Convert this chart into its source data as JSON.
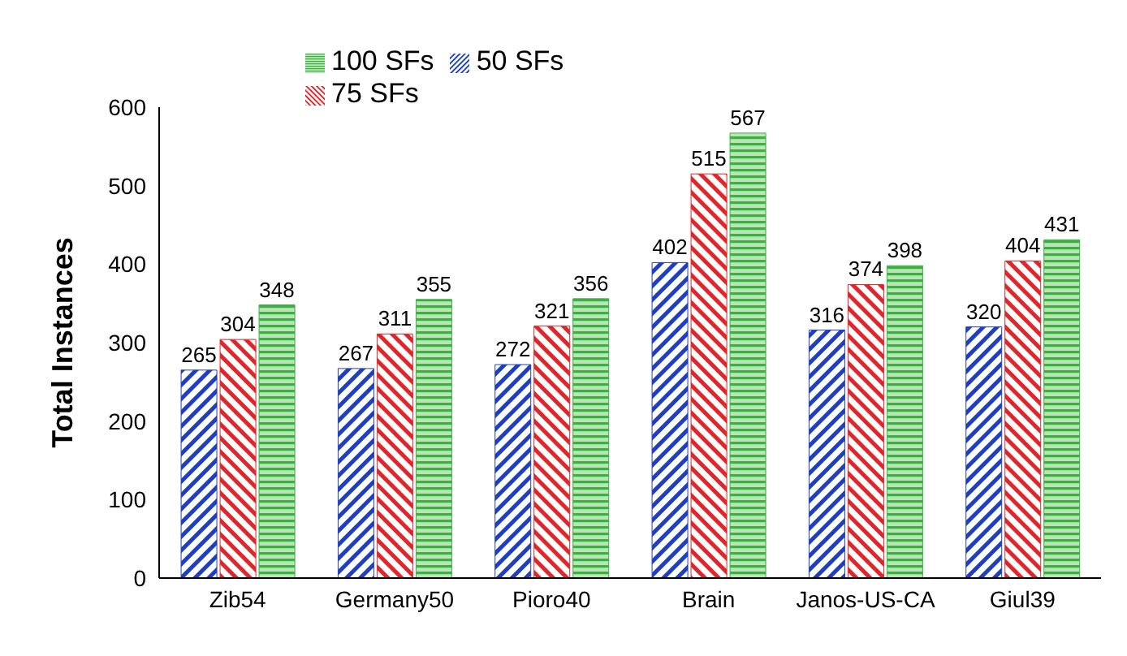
{
  "chart_data": {
    "type": "bar",
    "ylabel": "Total Instances",
    "categories": [
      "Zib54",
      "Germany50",
      "Pioro40",
      "Brain",
      "Janos-US-CA",
      "Giul39"
    ],
    "series": [
      {
        "name": "50 SFs",
        "color": "#1f3fbf",
        "values": [
          265,
          267,
          272,
          402,
          316,
          320
        ]
      },
      {
        "name": "75 SFs",
        "color": "#e0262a",
        "values": [
          304,
          311,
          321,
          515,
          374,
          404
        ]
      },
      {
        "name": "100 SFs",
        "color": "#3cb043",
        "values": [
          348,
          355,
          356,
          567,
          398,
          431
        ]
      }
    ],
    "ylim": [
      0,
      600
    ],
    "yticks": [
      0,
      100,
      200,
      300,
      400,
      500,
      600
    ],
    "grid": false,
    "legend": "top left",
    "data_labels": true
  }
}
